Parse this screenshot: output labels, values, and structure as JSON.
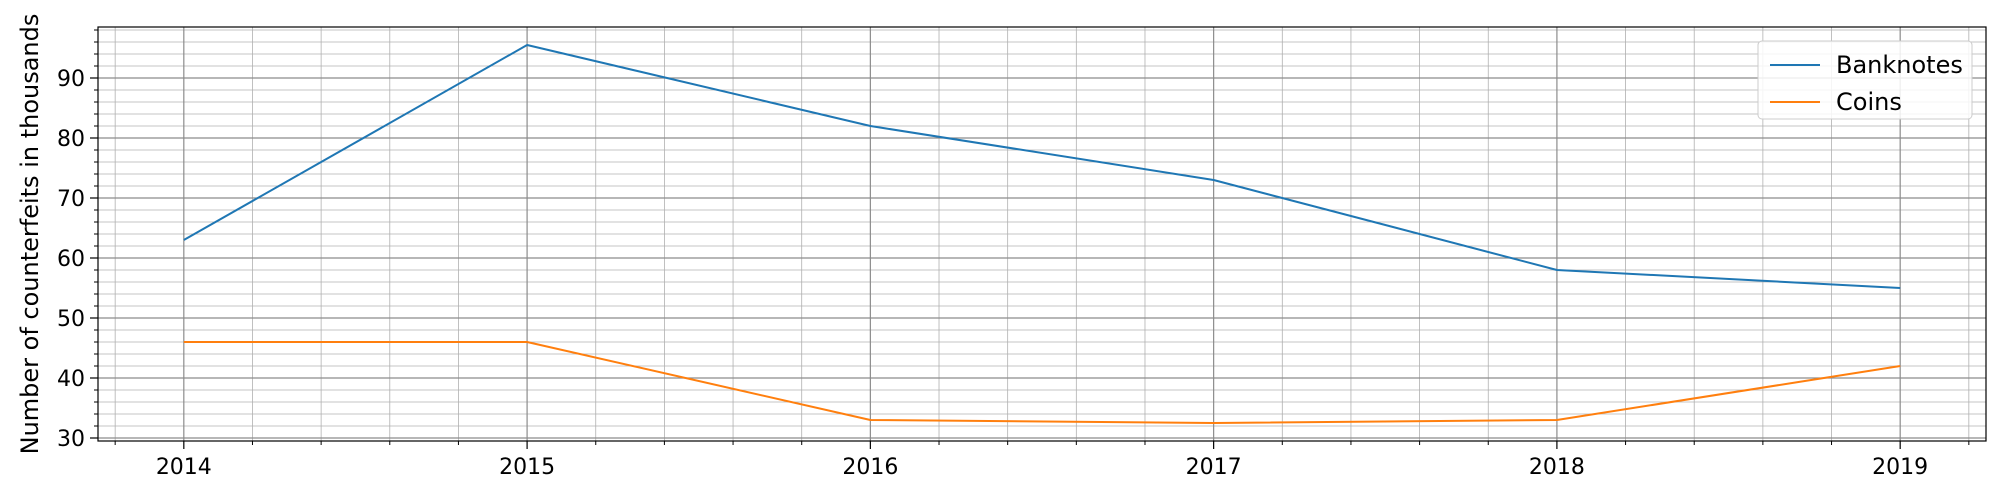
{
  "chart_data": {
    "type": "line",
    "title": "",
    "xlabel": "",
    "ylabel": "Number of counterfeits in thousands",
    "x": [
      2014,
      2015,
      2016,
      2017,
      2018,
      2019
    ],
    "x_ticks": [
      "2014",
      "2015",
      "2016",
      "2017",
      "2018",
      "2019"
    ],
    "xlim": [
      2013.75,
      2019.25
    ],
    "ylim": [
      29.5,
      98.5
    ],
    "y_ticks": [
      30,
      40,
      50,
      60,
      70,
      80,
      90
    ],
    "y_tick_labels": [
      "30",
      "40",
      "50",
      "60",
      "70",
      "80",
      "90"
    ],
    "grid": true,
    "minor_grid": true,
    "legend_position": "top-right",
    "series": [
      {
        "name": "Banknotes",
        "color": "#1f77b4",
        "values": [
          63,
          95.5,
          82,
          73,
          58,
          55
        ]
      },
      {
        "name": "Coins",
        "color": "#ff7f0e",
        "values": [
          46,
          46,
          33,
          32.5,
          33,
          42
        ]
      }
    ]
  }
}
